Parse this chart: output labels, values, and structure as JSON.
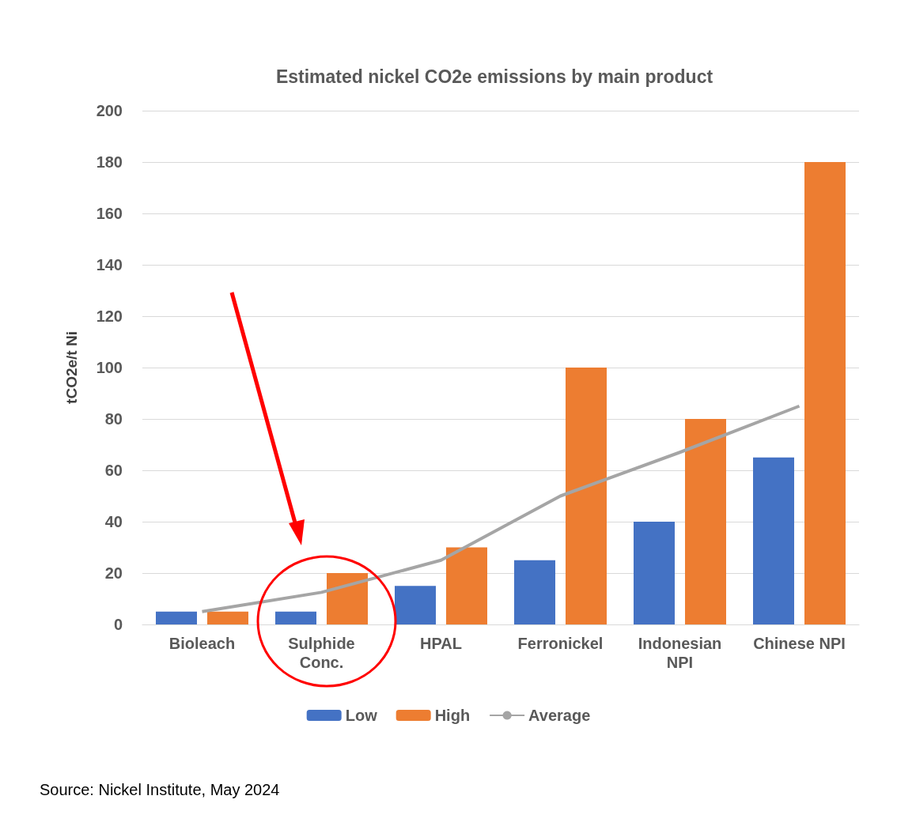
{
  "chart_data": {
    "type": "bar",
    "title": "Estimated nickel CO2e emissions by main product",
    "ylabel": "tCO2e/t Ni",
    "categories": [
      "Bioleach",
      "Sulphide\nConc.",
      "HPAL",
      "Ferronickel",
      "Indonesian\nNPI",
      "Chinese NPI"
    ],
    "series": [
      {
        "name": "Low",
        "color": "#4472c4",
        "values": [
          5,
          5,
          15,
          25,
          40,
          65
        ]
      },
      {
        "name": "High",
        "color": "#ed7d31",
        "values": [
          5,
          20,
          30,
          100,
          80,
          180
        ]
      },
      {
        "name": "Average",
        "type": "line",
        "color": "#a5a5a5",
        "values": [
          5,
          12.5,
          25,
          50,
          67,
          85
        ]
      }
    ],
    "ylim": [
      0,
      200
    ],
    "yticks": [
      0,
      20,
      40,
      60,
      80,
      100,
      120,
      140,
      160,
      180,
      200
    ],
    "grid": "y",
    "legend": "bottom",
    "marker": "none",
    "annotations": [
      "Source: Nickel Institute, May 2024"
    ]
  }
}
